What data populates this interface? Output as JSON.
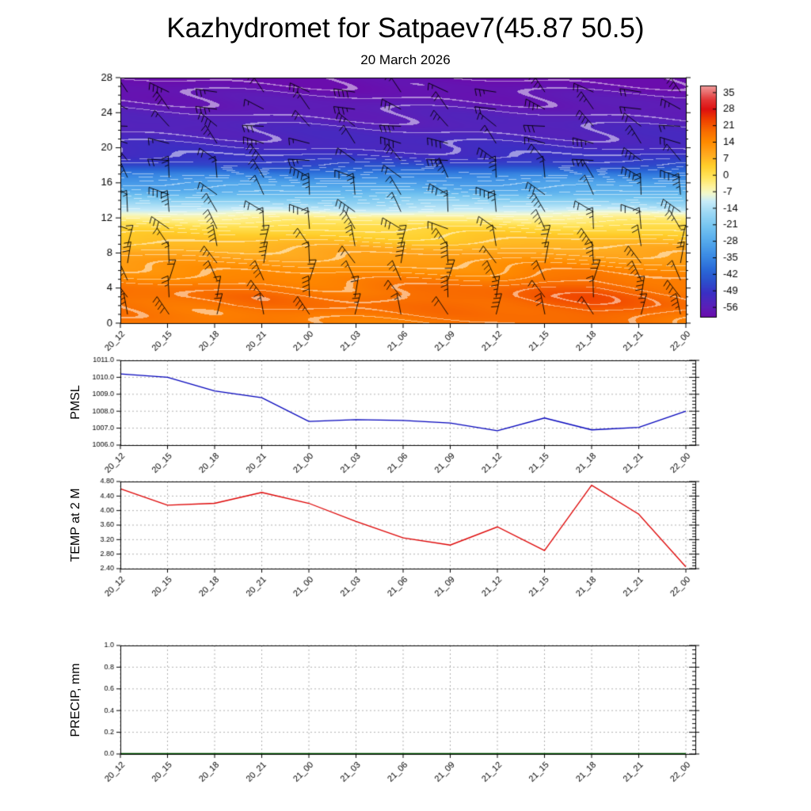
{
  "title": "Kazhydromet for Satpaev7(45.87 50.5)",
  "subtitle": "20 March 2026",
  "time_labels": [
    "20_12",
    "20_15",
    "20_18",
    "20_21",
    "21_00",
    "21_03",
    "21_06",
    "21_09",
    "21_12",
    "21_15",
    "21_18",
    "21_21",
    "22_00"
  ],
  "chart_data": [
    {
      "type": "heatmap",
      "name": "Upper-air temperature and wind section",
      "x_categories": [
        "20_12",
        "20_15",
        "20_18",
        "20_21",
        "21_00",
        "21_03",
        "21_06",
        "21_09",
        "21_12",
        "21_15",
        "21_18",
        "21_21",
        "22_00"
      ],
      "ylim": [
        0,
        28
      ],
      "ytick_labels": [
        "0",
        "4",
        "8",
        "12",
        "16",
        "20",
        "24",
        "28"
      ],
      "wind_barbs": true,
      "height_temp_profile": [
        [
          0,
          16
        ],
        [
          2,
          18
        ],
        [
          3,
          18
        ],
        [
          4,
          17
        ],
        [
          6,
          13
        ],
        [
          8,
          9
        ],
        [
          10,
          4
        ],
        [
          11,
          1
        ],
        [
          12,
          -4
        ],
        [
          13,
          -12
        ],
        [
          14,
          -19
        ],
        [
          15,
          -26
        ],
        [
          16,
          -30
        ],
        [
          17,
          -36
        ],
        [
          18,
          -46
        ],
        [
          19,
          -50
        ],
        [
          20,
          -52
        ],
        [
          22,
          -54
        ],
        [
          24,
          -56
        ],
        [
          26,
          -58
        ],
        [
          28,
          -60
        ]
      ],
      "time_anomaly": [
        0,
        0,
        0,
        0.5,
        0,
        0,
        0.5,
        1,
        1.5,
        3,
        3.5,
        2,
        0.5
      ],
      "colorbar": {
        "tick_labels": [
          "35",
          "28",
          "21",
          "14",
          "7",
          "0",
          "-7",
          "-14",
          "-21",
          "-28",
          "-35",
          "-42",
          "-49",
          "-56"
        ],
        "range": [
          -60,
          38
        ],
        "color_stops": [
          [
            -60,
            "#6a0dad"
          ],
          [
            -56,
            "#5b1fb8"
          ],
          [
            -50,
            "#3a30c4"
          ],
          [
            -45,
            "#2b50cc"
          ],
          [
            -40,
            "#2a6ad8"
          ],
          [
            -34,
            "#3c8ce4"
          ],
          [
            -28,
            "#55aaec"
          ],
          [
            -22,
            "#74c4f0"
          ],
          [
            -16,
            "#9cd8f4"
          ],
          [
            -11,
            "#c8ecf8"
          ],
          [
            -8,
            "#f0f8d0"
          ],
          [
            -5,
            "#fdf3a0"
          ],
          [
            -1,
            "#ffe55e"
          ],
          [
            4,
            "#ffce2a"
          ],
          [
            9,
            "#ffa81e"
          ],
          [
            14,
            "#ff8c00"
          ],
          [
            19,
            "#f86a00"
          ],
          [
            24,
            "#ee3c00"
          ],
          [
            28,
            "#dd1010"
          ],
          [
            32,
            "#e23535"
          ],
          [
            38,
            "#f09c9c"
          ]
        ]
      }
    },
    {
      "type": "line",
      "name": "PMSL",
      "x_categories": [
        "20_12",
        "20_15",
        "20_18",
        "20_21",
        "21_00",
        "21_03",
        "21_06",
        "21_09",
        "21_12",
        "21_15",
        "21_18",
        "21_21",
        "22_00"
      ],
      "values": [
        1010.2,
        1010.0,
        1009.2,
        1008.8,
        1007.4,
        1007.5,
        1007.45,
        1007.3,
        1006.85,
        1007.6,
        1006.9,
        1007.05,
        1008.0
      ],
      "ylim": [
        1006.0,
        1011.0
      ],
      "ytick_labels": [
        "1006.0",
        "1007.0",
        "1008.0",
        "1009.0",
        "1010.0",
        "1011.0"
      ],
      "color": "#0000bb",
      "grid": "dashed"
    },
    {
      "type": "line",
      "name": "TEMP at 2 M",
      "x_categories": [
        "20_12",
        "20_15",
        "20_18",
        "20_21",
        "21_00",
        "21_03",
        "21_06",
        "21_09",
        "21_12",
        "21_15",
        "21_18",
        "21_21",
        "22_00"
      ],
      "values": [
        4.6,
        4.15,
        4.2,
        4.5,
        4.2,
        3.7,
        3.25,
        3.05,
        3.55,
        2.9,
        4.7,
        3.9,
        2.45
      ],
      "ylim": [
        2.4,
        4.8
      ],
      "ytick_labels": [
        "2.40",
        "2.80",
        "3.20",
        "3.60",
        "4.00",
        "4.40",
        "4.80"
      ],
      "color": "#dd0000",
      "grid": "dashed"
    },
    {
      "type": "line",
      "name": "PRECIP, mm",
      "x_categories": [
        "20_12",
        "20_15",
        "20_18",
        "20_21",
        "21_00",
        "21_03",
        "21_06",
        "21_09",
        "21_12",
        "21_15",
        "21_18",
        "21_21",
        "22_00"
      ],
      "values": [
        0,
        0,
        0,
        0,
        0,
        0,
        0,
        0,
        0,
        0,
        0,
        0,
        0
      ],
      "ylim": [
        0.0,
        1.0
      ],
      "ytick_labels": [
        "0.0",
        "0.2",
        "0.4",
        "0.6",
        "0.8",
        "1.0"
      ],
      "color": "#005500",
      "grid": "dashed"
    }
  ]
}
